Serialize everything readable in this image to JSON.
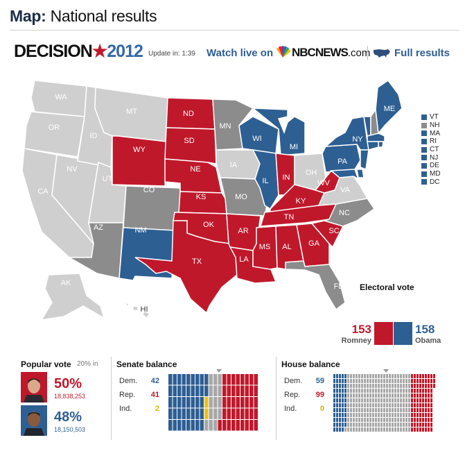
{
  "header": {
    "title_bold": "Map:",
    "title_rest": "National results"
  },
  "brand": {
    "decision_word": "DECISION",
    "decision_year": "2012",
    "update_label": "Update in: 1:39",
    "watch_label": "Watch live on",
    "nbc_name": "NBCNEWS",
    "nbc_domain": ".com",
    "full_results_label": "Full results"
  },
  "colors": {
    "romney": "#c0182b",
    "obama": "#2e5f93",
    "undecided": "#8c8c8c",
    "not_reporting": "#cfcfcf"
  },
  "map": {
    "states": [
      {
        "id": "WA",
        "label": "WA",
        "status": "none"
      },
      {
        "id": "OR",
        "label": "OR",
        "status": "none"
      },
      {
        "id": "CA",
        "label": "CA",
        "status": "none"
      },
      {
        "id": "ID",
        "label": "ID",
        "status": "none"
      },
      {
        "id": "NV",
        "label": "NV",
        "status": "none"
      },
      {
        "id": "MT",
        "label": "MT",
        "status": "none"
      },
      {
        "id": "UT",
        "label": "UT",
        "status": "none"
      },
      {
        "id": "AZ",
        "label": "AZ",
        "status": "gray"
      },
      {
        "id": "WY",
        "label": "WY",
        "status": "rep"
      },
      {
        "id": "CO",
        "label": "CO",
        "status": "gray"
      },
      {
        "id": "NM",
        "label": "NM",
        "status": "dem"
      },
      {
        "id": "ND",
        "label": "ND",
        "status": "rep"
      },
      {
        "id": "SD",
        "label": "SD",
        "status": "rep"
      },
      {
        "id": "NE",
        "label": "NE",
        "status": "rep"
      },
      {
        "id": "KS",
        "label": "KS",
        "status": "rep"
      },
      {
        "id": "OK",
        "label": "OK",
        "status": "rep"
      },
      {
        "id": "TX",
        "label": "TX",
        "status": "rep"
      },
      {
        "id": "MN",
        "label": "MN",
        "status": "gray"
      },
      {
        "id": "IA",
        "label": "IA",
        "status": "none"
      },
      {
        "id": "MO",
        "label": "MO",
        "status": "gray"
      },
      {
        "id": "AR",
        "label": "AR",
        "status": "rep"
      },
      {
        "id": "LA",
        "label": "LA",
        "status": "rep"
      },
      {
        "id": "WI",
        "label": "WI",
        "status": "dem"
      },
      {
        "id": "IL",
        "label": "IL",
        "status": "dem"
      },
      {
        "id": "MI",
        "label": "MI",
        "status": "dem"
      },
      {
        "id": "IN",
        "label": "IN",
        "status": "rep"
      },
      {
        "id": "OH",
        "label": "OH",
        "status": "none"
      },
      {
        "id": "KY",
        "label": "KY",
        "status": "rep"
      },
      {
        "id": "TN",
        "label": "TN",
        "status": "rep"
      },
      {
        "id": "MS",
        "label": "MS",
        "status": "rep"
      },
      {
        "id": "AL",
        "label": "AL",
        "status": "rep"
      },
      {
        "id": "GA",
        "label": "GA",
        "status": "rep"
      },
      {
        "id": "FL",
        "label": "FL",
        "status": "gray"
      },
      {
        "id": "SC",
        "label": "SC",
        "status": "rep"
      },
      {
        "id": "NC",
        "label": "NC",
        "status": "gray"
      },
      {
        "id": "VA",
        "label": "VA",
        "status": "none"
      },
      {
        "id": "WV",
        "label": "WV",
        "status": "rep"
      },
      {
        "id": "PA",
        "label": "PA",
        "status": "dem"
      },
      {
        "id": "NY",
        "label": "NY",
        "status": "dem"
      },
      {
        "id": "ME",
        "label": "ME",
        "status": "dem"
      },
      {
        "id": "AK",
        "label": "AK",
        "status": "none"
      },
      {
        "id": "HI",
        "label": "HI",
        "status": "none"
      }
    ],
    "small_states": [
      {
        "label": "VT",
        "status": "dem"
      },
      {
        "label": "NH",
        "status": "gray"
      },
      {
        "label": "MA",
        "status": "dem"
      },
      {
        "label": "RI",
        "status": "dem"
      },
      {
        "label": "CT",
        "status": "dem"
      },
      {
        "label": "NJ",
        "status": "dem"
      },
      {
        "label": "DE",
        "status": "dem"
      },
      {
        "label": "MD",
        "status": "dem"
      },
      {
        "label": "DC",
        "status": "dem"
      }
    ]
  },
  "electoral": {
    "title": "Electoral vote",
    "romney_votes": "153",
    "romney_name": "Romney",
    "obama_votes": "158",
    "obama_name": "Obama"
  },
  "popular": {
    "title": "Popular vote",
    "reporting": "20% in",
    "romney_pct": "50%",
    "romney_votes": "18,838,253",
    "obama_pct": "48%",
    "obama_votes": "18,150,503"
  },
  "senate": {
    "title": "Senate balance",
    "dem_label": "Dem.",
    "dem": "42",
    "rep_label": "Rep.",
    "rep": "41",
    "ind_label": "Ind.",
    "ind": "2",
    "total_seats": 100
  },
  "house": {
    "title": "House balance",
    "dem_label": "Dem.",
    "dem": "59",
    "rep_label": "Rep.",
    "rep": "99",
    "ind_label": "Ind.",
    "ind": "0",
    "total_seats": 435
  }
}
